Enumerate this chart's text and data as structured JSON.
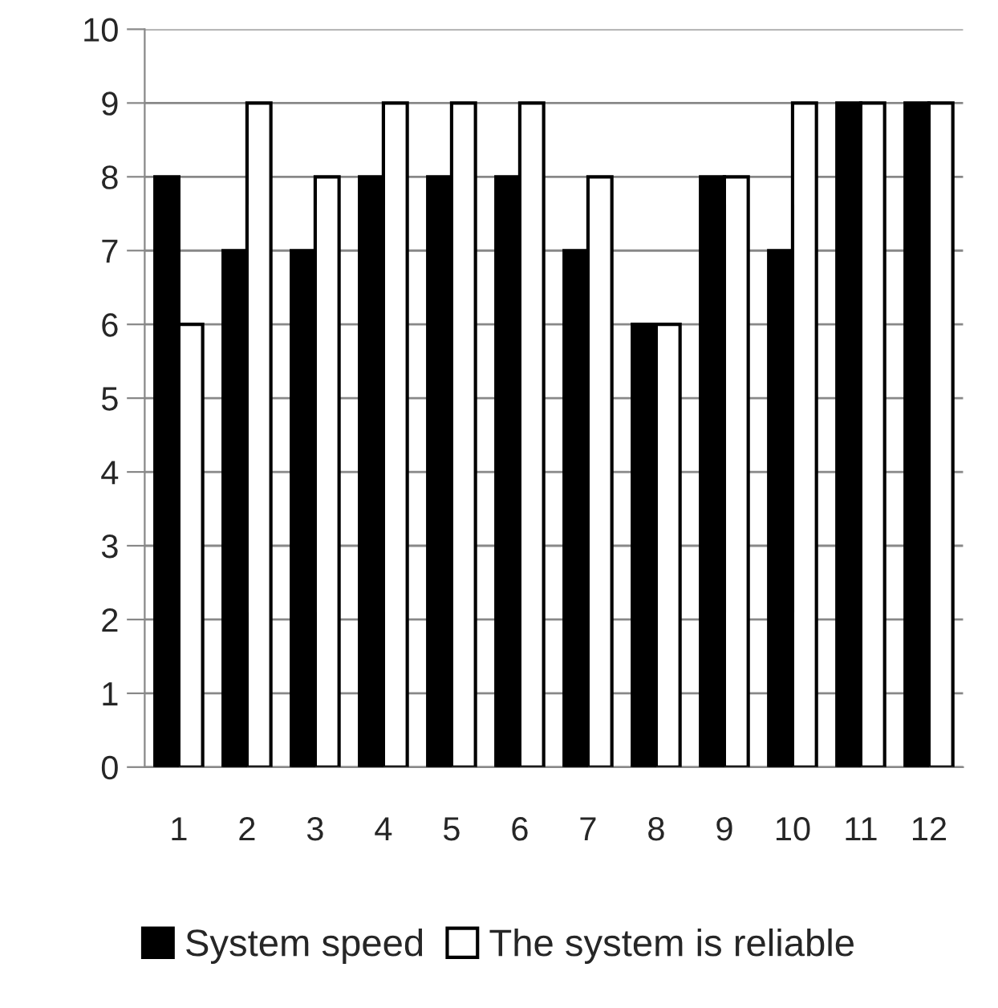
{
  "chart_data": {
    "type": "bar",
    "categories": [
      "1",
      "2",
      "3",
      "4",
      "5",
      "6",
      "7",
      "8",
      "9",
      "10",
      "11",
      "12"
    ],
    "series": [
      {
        "name": "System speed",
        "color": "#000000",
        "values": [
          8,
          7,
          7,
          8,
          8,
          8,
          7,
          6,
          8,
          7,
          9,
          9
        ]
      },
      {
        "name": "The system is reliable",
        "color": "#ffffff",
        "values": [
          6,
          9,
          8,
          9,
          9,
          9,
          8,
          6,
          8,
          9,
          9,
          9
        ]
      }
    ],
    "ylim": [
      0,
      10
    ],
    "yticks": [
      0,
      1,
      2,
      3,
      4,
      5,
      6,
      7,
      8,
      9,
      10
    ],
    "grid": "y",
    "legend": "bottom"
  }
}
